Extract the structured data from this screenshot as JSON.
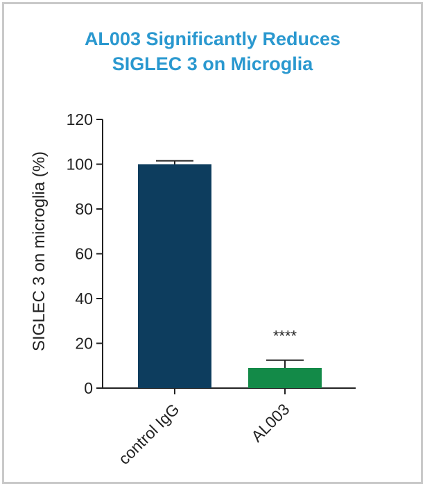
{
  "chart_data": {
    "type": "bar",
    "title": "AL003 Significantly Reduces SIGLEC 3 on Microglia",
    "title_lines": [
      "AL003 Significantly Reduces",
      "SIGLEC 3 on Microglia"
    ],
    "ylabel": "SIGLEC 3 on microglia (%)",
    "xlabel": "",
    "categories": [
      "control IgG",
      "AL003"
    ],
    "values": [
      100,
      9
    ],
    "error_upper": [
      101.5,
      12.5
    ],
    "ylim": [
      0,
      120
    ],
    "yticks": [
      "0",
      "20",
      "40",
      "60",
      "80",
      "100",
      "120"
    ],
    "bar_colors": [
      "#0d3d5e",
      "#138a48"
    ],
    "annotations": [
      {
        "category": "AL003",
        "text": "****"
      }
    ],
    "title_color": "#2a98cf",
    "grid": false
  }
}
